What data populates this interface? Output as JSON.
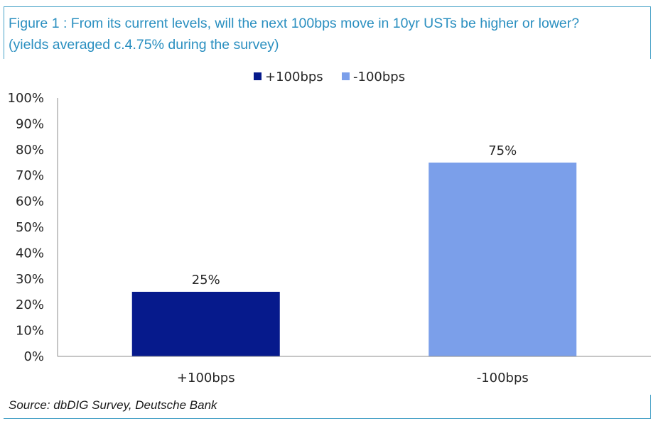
{
  "title_line1": "Figure 1 : From its current levels, will the next 100bps move in 10yr USTs be higher or lower?",
  "title_line2": "(yields averaged c.4.75% during the survey)",
  "source": "Source: dbDIG Survey, Deutsche Bank",
  "chart_data": {
    "type": "bar",
    "categories": [
      "+100bps",
      "-100bps"
    ],
    "values": [
      25,
      75
    ],
    "data_labels": [
      "25%",
      "75%"
    ],
    "colors": [
      "#061a8c",
      "#7b9fea"
    ],
    "legend": [
      {
        "label": "+100bps",
        "color": "#061a8c"
      },
      {
        "label": "-100bps",
        "color": "#7b9fea"
      }
    ],
    "legend_position": "top-center",
    "ylim": [
      0,
      100
    ],
    "yticks": [
      0,
      10,
      20,
      30,
      40,
      50,
      60,
      70,
      80,
      90,
      100
    ],
    "ytick_labels": [
      "0%",
      "10%",
      "20%",
      "30%",
      "40%",
      "50%",
      "60%",
      "70%",
      "80%",
      "90%",
      "100%"
    ],
    "grid": false
  }
}
